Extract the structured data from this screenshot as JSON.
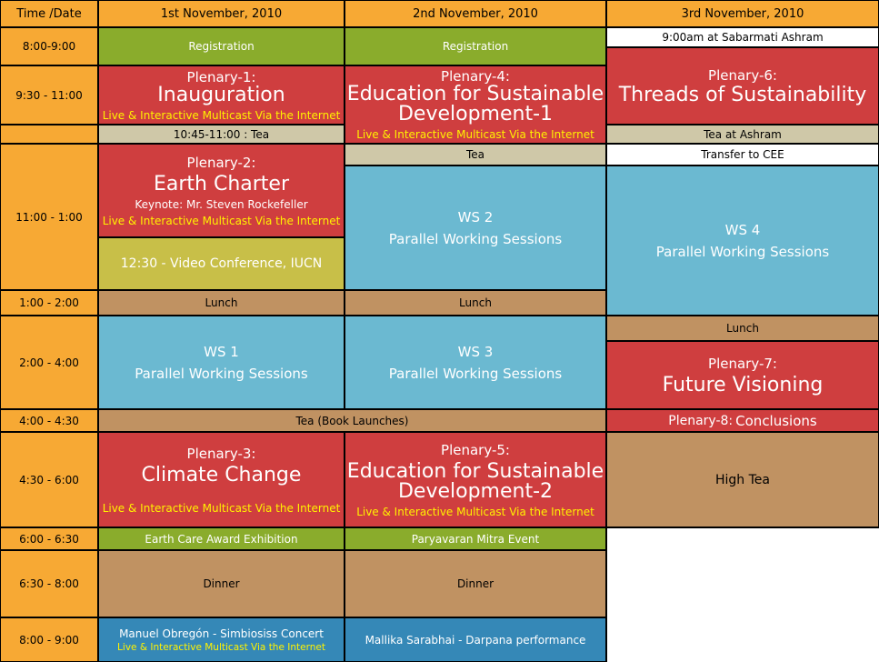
{
  "header": {
    "time_date": "Time /Date",
    "day1": "1st November, 2010",
    "day2": "2nd November, 2010",
    "day3": "3rd November, 2010"
  },
  "times": {
    "t1": "8:00-9:00",
    "t2": "9:30 - 11:00",
    "t3": "11:00 - 1:00",
    "t4": "1:00 - 2:00",
    "t5": "2:00 - 4:00",
    "t6": "4:00 - 4:30",
    "t7": "4:30 - 6:00",
    "t8": "6:00 - 6:30",
    "t9": "6:30 - 8:00",
    "t10": "8:00 - 9:00"
  },
  "day1": {
    "registration": "Registration",
    "plenary1_label": "Plenary-1:",
    "plenary1_title": "Inauguration",
    "plenary1_live": "Live & Interactive Multicast Via the Internet",
    "tea": "10:45-11:00 : Tea",
    "plenary2_label": "Plenary-2:",
    "plenary2_title": "Earth Charter",
    "plenary2_keynote": "Keynote: Mr. Steven Rockefeller",
    "plenary2_live": "Live & Interactive Multicast Via the Internet",
    "video_conf": "12:30 - Video Conference, IUCN",
    "lunch": "Lunch",
    "ws1_title": "WS 1",
    "ws1_sub": "Parallel Working Sessions",
    "plenary3_label": "Plenary-3:",
    "plenary3_title": "Climate Change",
    "plenary3_live": "Live & Interactive Multicast Via the Internet",
    "award": "Earth Care Award Exhibition",
    "dinner": "Dinner",
    "concert": "Manuel Obregón - Simbiosiss Concert",
    "concert_live": "Live & Interactive Multicast Via the Internet"
  },
  "day2": {
    "registration": "Registration",
    "plenary4_label": "Plenary-4:",
    "plenary4_title_1": "Education for Sustainable",
    "plenary4_title_2": "Development-1",
    "plenary4_live": "Live & Interactive Multicast Via the Internet",
    "tea": "Tea",
    "ws2_title": "WS 2",
    "ws2_sub": "Parallel Working Sessions",
    "lunch": "Lunch",
    "ws3_title": "WS 3",
    "ws3_sub": "Parallel Working Sessions",
    "plenary5_label": "Plenary-5:",
    "plenary5_title_1": "Education for Sustainable",
    "plenary5_title_2": "Development-2",
    "plenary5_live": "Live & Interactive Multicast Via the Internet",
    "mitra": "Paryavaran Mitra Event",
    "dinner": "Dinner",
    "darpana": "Mallika Sarabhai - Darpana performance"
  },
  "shared": {
    "tea_book": "Tea (Book Launches)"
  },
  "day3": {
    "ashram": "9:00am at Sabarmati Ashram",
    "plenary6_label": "Plenary-6:",
    "plenary6_title": "Threads of Sustainability",
    "tea_ashram": "Tea at Ashram",
    "transfer": "Transfer to CEE",
    "ws4_title": "WS 4",
    "ws4_sub": "Parallel Working Sessions",
    "lunch": "Lunch",
    "plenary7_label": "Plenary-7:",
    "plenary7_title": "Future Visioning",
    "plenary8_label": "Plenary-8:",
    "plenary8_title": "Conclusions",
    "high_tea": "High Tea"
  },
  "colors": {
    "orange": "#f7a934",
    "green": "#8aac2c",
    "red": "#cf3e3f",
    "blue": "#6bb9d1",
    "tan": "#c09262",
    "beige": "#cfc8a8",
    "olive": "#c8bf48",
    "navy": "#3588b7",
    "live_text": "#fff200"
  }
}
